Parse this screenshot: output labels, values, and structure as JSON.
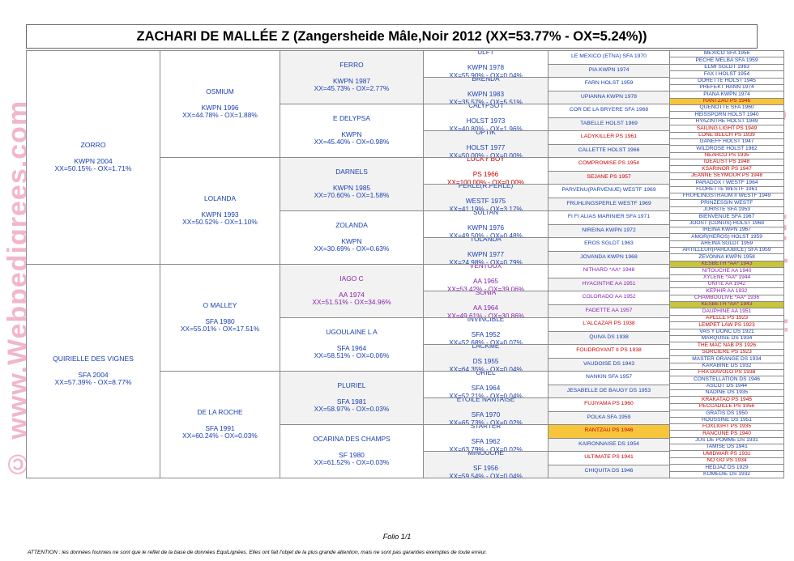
{
  "watermark": "© www.Webpedigrees.com",
  "title": "ZACHARI DE MALLÉE Z (Zangersheide Mâle,Noir  2012 (XX=53.77% - OX=5.24%))",
  "pedigree": {
    "g1": [
      {
        "lines": [
          "ZORRO",
          "KWPN 2004",
          "XX=50.15% - OX=1.71%"
        ],
        "color": "blue",
        "bg": "white"
      },
      {
        "lines": [
          "QUIRIELLE DES VIGNES",
          "SFA 2004",
          "XX=57.39% - OX=8.77%"
        ],
        "color": "blue",
        "bg": "white"
      }
    ],
    "g2": [
      {
        "lines": [
          "OSMIUM",
          "KWPN 1996",
          "XX=44.78% - OX=1.88%"
        ],
        "color": "blue",
        "bg": "white"
      },
      {
        "lines": [
          "LOLANDA",
          "KWPN 1993",
          "XX=50.52% - OX=1.10%"
        ],
        "color": "blue",
        "bg": "white"
      },
      {
        "lines": [
          "O MALLEY",
          "SFA 1980",
          "XX=55.01% - OX=17.51%"
        ],
        "color": "blue",
        "bg": "white"
      },
      {
        "lines": [
          "DE LA ROCHE",
          "SFA 1991",
          "XX=60.24% - OX=0.03%"
        ],
        "color": "blue",
        "bg": "white"
      }
    ],
    "g3": [
      {
        "lines": [
          "FERRO",
          "KWPN 1987",
          "XX=45.73% - OX=2.77%"
        ],
        "color": "blue",
        "bg": "shade"
      },
      {
        "lines": [
          "E DELYPSA",
          "KWPN",
          "XX=45.40% - OX=0.98%"
        ],
        "color": "blue",
        "bg": "white"
      },
      {
        "lines": [
          "DARNELS",
          "KWPN 1985",
          "XX=70.60% - OX=1.58%"
        ],
        "color": "blue",
        "bg": "shade"
      },
      {
        "lines": [
          "ZOLANDA",
          "KWPN",
          "XX=30.69% - OX=0.63%"
        ],
        "color": "blue",
        "bg": "white"
      },
      {
        "lines": [
          "IAGO C",
          "AA 1974",
          "XX=51.51% - OX=34.96%"
        ],
        "color": "purple",
        "bg": "shade"
      },
      {
        "lines": [
          "UGOULAINE L A",
          "SFA 1964",
          "XX=58.51% - OX=0.06%"
        ],
        "color": "blue",
        "bg": "white"
      },
      {
        "lines": [
          "PLURIEL",
          "SFA 1981",
          "XX=58.97% - OX=0.03%"
        ],
        "color": "blue",
        "bg": "shade"
      },
      {
        "lines": [
          "OCARINA DES CHAMPS",
          "SF 1980",
          "XX=61.52% - OX=0.03%"
        ],
        "color": "blue",
        "bg": "white"
      }
    ],
    "g4": [
      {
        "lines": [
          "ULFT",
          "KWPN 1978",
          "XX=55.90% - OX=0.04%"
        ],
        "color": "blue",
        "bg": "white"
      },
      {
        "lines": [
          "BRENDA",
          "KWPN 1983",
          "XX=35.57% - OX=5.51%"
        ],
        "color": "blue",
        "bg": "shade"
      },
      {
        "lines": [
          "CALYPSO I",
          "HOLST 1973",
          "XX=40.80% - OX=1.96%"
        ],
        "color": "blue",
        "bg": "white"
      },
      {
        "lines": [
          "OPTIK",
          "HOLST 1977",
          "XX=50.00% - OX=0.00%"
        ],
        "color": "blue",
        "bg": "shade"
      },
      {
        "lines": [
          "LUCKY BOY",
          "PS 1966",
          "XX=100.00% - OX=0.00%"
        ],
        "color": "red",
        "bg": "white"
      },
      {
        "lines": [
          "PERLE(R.PERLE)",
          "WESTF 1975",
          "XX=41.19% - OX=3.17%"
        ],
        "color": "blue",
        "bg": "shade"
      },
      {
        "lines": [
          "SULTAN",
          "KWPN 1976",
          "XX=49.50% - OX=0.48%"
        ],
        "color": "blue",
        "bg": "white"
      },
      {
        "lines": [
          "TOLANDA",
          "KWPN 1977",
          "XX=24.98% - OX=0.79%"
        ],
        "color": "blue",
        "bg": "shade"
      },
      {
        "lines": [
          "VENTOUX",
          "AA 1965",
          "XX=53.42% - OX=39.06%"
        ],
        "color": "purple",
        "bg": "white"
      },
      {
        "lines": [
          "SONIA",
          "AA 1964",
          "XX=49.61% - OX=30.86%"
        ],
        "color": "purple",
        "bg": "shade"
      },
      {
        "lines": [
          "INVINCIBLE",
          "SFA 1952",
          "XX=52.68% - OX=0.07%"
        ],
        "color": "blue",
        "bg": "white"
      },
      {
        "lines": [
          "LACKME",
          "DS 1955",
          "XX=64.35% - OX=0.04%"
        ],
        "color": "blue",
        "bg": "shade"
      },
      {
        "lines": [
          "URIEL",
          "SFA 1964",
          "XX=52.21% - OX=0.04%"
        ],
        "color": "blue",
        "bg": "white"
      },
      {
        "lines": [
          "ETOILE NANTAISE",
          "SFA 1970",
          "XX=65.73% - OX=0.02%"
        ],
        "color": "blue",
        "bg": "shade"
      },
      {
        "lines": [
          "STARTER",
          "SFA 1962",
          "XX=63.79% - OX=0.02%"
        ],
        "color": "blue",
        "bg": "white"
      },
      {
        "lines": [
          "MINOUCHE",
          "SF 1956",
          "XX=59.54% - OX=0.04%"
        ],
        "color": "blue",
        "bg": "shade"
      }
    ],
    "g5": [
      {
        "text": "LE MEXICO (ETNA) SFA 1970",
        "color": "blue",
        "bg": "white"
      },
      {
        "text": "PIA KWPN 1974",
        "color": "blue",
        "bg": "shade"
      },
      {
        "text": "FARN HOLST 1959",
        "color": "blue",
        "bg": "white"
      },
      {
        "text": "UPIANNA KWPN 1978",
        "color": "blue",
        "bg": "shade"
      },
      {
        "text": "COR DE LA BRYERE SFA 1968",
        "color": "blue",
        "bg": "white"
      },
      {
        "text": "TABELLE HOLST 1969",
        "color": "blue",
        "bg": "shade"
      },
      {
        "text": "LADYKILLER PS 1961",
        "color": "red",
        "bg": "white"
      },
      {
        "text": "CALLETTE HOLST 1966",
        "color": "blue",
        "bg": "shade"
      },
      {
        "text": "COMPROMISE PS 1954",
        "color": "red",
        "bg": "white"
      },
      {
        "text": "SEJANE PS 1957",
        "color": "red",
        "bg": "shade"
      },
      {
        "text": "PARVENU(PARVENUE) WESTF 1969",
        "color": "blue",
        "bg": "white"
      },
      {
        "text": "FRUHLINGSPERLE WESTF 1969",
        "color": "blue",
        "bg": "shade"
      },
      {
        "text": "FI FI  ALIAS MARINIER SFA 1971",
        "color": "blue",
        "bg": "white"
      },
      {
        "text": "NIREINA KWPN 1972",
        "color": "blue",
        "bg": "shade"
      },
      {
        "text": "EROS SGLDT 1963",
        "color": "blue",
        "bg": "white"
      },
      {
        "text": "JOVANDA KWPN 1968",
        "color": "blue",
        "bg": "shade"
      },
      {
        "text": "NITHARD *AA* 1948",
        "color": "purple",
        "bg": "white"
      },
      {
        "text": "HYACINTHE AA 1951",
        "color": "purple",
        "bg": "shade"
      },
      {
        "text": "COLORADO AA 1952",
        "color": "purple",
        "bg": "white"
      },
      {
        "text": "FADETTE AA 1957",
        "color": "purple",
        "bg": "shade"
      },
      {
        "text": "L'ALCAZAR PS 1938",
        "color": "red",
        "bg": "white"
      },
      {
        "text": "QUIVA DS 1938",
        "color": "blue",
        "bg": "shade"
      },
      {
        "text": "FOUDROYANT II PS 1938",
        "color": "red",
        "bg": "white"
      },
      {
        "text": "VAUDOISE DS 1943",
        "color": "blue",
        "bg": "shade"
      },
      {
        "text": "NANKIN SFA 1957",
        "color": "blue",
        "bg": "white"
      },
      {
        "text": "JESABELLE DE BAUGY DS 1953",
        "color": "blue",
        "bg": "shade"
      },
      {
        "text": "FUJIYAMA PS 1960",
        "color": "red",
        "bg": "white"
      },
      {
        "text": "POLKA SFA 1959",
        "color": "blue",
        "bg": "shade"
      },
      {
        "text": "RANTZAU PS 1946",
        "color": "red",
        "bg": "hl-orange"
      },
      {
        "text": "KAIRONNAISE DS 1954",
        "color": "blue",
        "bg": "shade"
      },
      {
        "text": "ULTIMATE PS 1941",
        "color": "red",
        "bg": "white"
      },
      {
        "text": "CHIQUITA DS 1946",
        "color": "blue",
        "bg": "shade"
      }
    ],
    "g6": [
      {
        "text": "MEXICO SFA 1956",
        "color": "blue",
        "bg": "white"
      },
      {
        "text": "PECHE MELBA SFA 1959",
        "color": "blue",
        "bg": "white"
      },
      {
        "text": "ELMI SGLDT 1963",
        "color": "blue",
        "bg": "white"
      },
      {
        "text": "FAX I HOLST 1954",
        "color": "blue",
        "bg": "white"
      },
      {
        "text": "DORETTE HOLST 1945",
        "color": "blue",
        "bg": "white"
      },
      {
        "text": "PREFEKT HANN 1974",
        "color": "blue",
        "bg": "white"
      },
      {
        "text": "PIANA KWPN 1974",
        "color": "blue",
        "bg": "white"
      },
      {
        "text": "RANTZAU PS 1946",
        "color": "red",
        "bg": "hl-orange"
      },
      {
        "text": "QUENOTTE SFA 1960",
        "color": "blue",
        "bg": "white"
      },
      {
        "text": "HEISSPORN HOLST 1940",
        "color": "blue",
        "bg": "white"
      },
      {
        "text": "HYAZINTHE HOLST 1949",
        "color": "blue",
        "bg": "white"
      },
      {
        "text": "SAILING LIGHT PS 1949",
        "color": "red",
        "bg": "white"
      },
      {
        "text": "LONE BEECH PS 1939",
        "color": "red",
        "bg": "white"
      },
      {
        "text": "GANEFF HOLST 1947",
        "color": "blue",
        "bg": "white"
      },
      {
        "text": "WILDROSE HOLST 1962",
        "color": "blue",
        "bg": "white"
      },
      {
        "text": "NEARCO PS 1935",
        "color": "red",
        "bg": "white"
      },
      {
        "text": "IDEALIST PS 1948",
        "color": "red",
        "bg": "white"
      },
      {
        "text": "KSARINOR PS 1947",
        "color": "red",
        "bg": "white"
      },
      {
        "text": "JEANNE SEYMOUR PS 1948",
        "color": "red",
        "bg": "white"
      },
      {
        "text": "PARADOX I WESTF 1964",
        "color": "blue",
        "bg": "white"
      },
      {
        "text": "FLORETTE WESTF 1961",
        "color": "blue",
        "bg": "white"
      },
      {
        "text": "FRUHLINGSTRAUM II WESTF 1949",
        "color": "blue",
        "bg": "white"
      },
      {
        "text": "PRINZESSIN WESTF",
        "color": "blue",
        "bg": "white"
      },
      {
        "text": "JURISTE SFA 1953",
        "color": "blue",
        "bg": "white"
      },
      {
        "text": "BIENVENUE SFA 1967",
        "color": "blue",
        "bg": "white"
      },
      {
        "text": "JOOST (CONUS) HOLST 1968",
        "color": "blue",
        "bg": "white"
      },
      {
        "text": "IREINA KWPN 1967",
        "color": "blue",
        "bg": "white"
      },
      {
        "text": "AMOR(HEROS) HOLST 1959",
        "color": "blue",
        "bg": "white"
      },
      {
        "text": "AREINA SGLDT 1959",
        "color": "blue",
        "bg": "white"
      },
      {
        "text": "ARTILLEUR(PARDUBICE) SFA 1959",
        "color": "blue",
        "bg": "white"
      },
      {
        "text": "ZEVONNA KWPN 1958",
        "color": "blue",
        "bg": "white"
      },
      {
        "text": "KESBETH *AA* 1943",
        "color": "purple",
        "bg": "hl-olive"
      },
      {
        "text": "NITOUCHE AA 1940",
        "color": "purple",
        "bg": "white"
      },
      {
        "text": "XYLENE *AA* 1944",
        "color": "purple",
        "bg": "white"
      },
      {
        "text": "UNITE AA 1942",
        "color": "purple",
        "bg": "white"
      },
      {
        "text": "KEPHIR AA 1932",
        "color": "purple",
        "bg": "white"
      },
      {
        "text": "CHAMBOULIVE *AA* 1936",
        "color": "purple",
        "bg": "white"
      },
      {
        "text": "KESBETH *AA* 1943",
        "color": "purple",
        "bg": "hl-olive"
      },
      {
        "text": "DAUPHINE AA 1951",
        "color": "purple",
        "bg": "white"
      },
      {
        "text": "APELLE PS 1923",
        "color": "red",
        "bg": "white"
      },
      {
        "text": "LEMPET LAW PS 1923",
        "color": "red",
        "bg": "white"
      },
      {
        "text": "VAS Y DONC DS 1921",
        "color": "blue",
        "bg": "white"
      },
      {
        "text": "MARQUISE DS 1934",
        "color": "blue",
        "bg": "white"
      },
      {
        "text": "THE MAC NAB PS 1926",
        "color": "red",
        "bg": "white"
      },
      {
        "text": "SORCIERE PS 1923",
        "color": "red",
        "bg": "white"
      },
      {
        "text": "MASTER ORANGE DS 1934",
        "color": "blue",
        "bg": "white"
      },
      {
        "text": "KARABINE DS 1932",
        "color": "blue",
        "bg": "white"
      },
      {
        "text": "FRA DIAVOLO PS 1938",
        "color": "red",
        "bg": "white"
      },
      {
        "text": "CONSTELLATION DS 1946",
        "color": "blue",
        "bg": "white"
      },
      {
        "text": "ASCOT DS 1944",
        "color": "blue",
        "bg": "white"
      },
      {
        "text": "NADINE DS 1935",
        "color": "blue",
        "bg": "white"
      },
      {
        "text": "KRAKATAO PS 1945",
        "color": "red",
        "bg": "white"
      },
      {
        "text": "PECCADILLE PS 1956",
        "color": "red",
        "bg": "white"
      },
      {
        "text": "GRATIS DS 1950",
        "color": "blue",
        "bg": "white"
      },
      {
        "text": "HOUSSINE DS 1951",
        "color": "blue",
        "bg": "white"
      },
      {
        "text": "FOXLIGHT PS 1935",
        "color": "red",
        "bg": "white"
      },
      {
        "text": "RANCUNE PS 1940",
        "color": "red",
        "bg": "white"
      },
      {
        "text": "JUS DE POMME DS 1931",
        "color": "blue",
        "bg": "white"
      },
      {
        "text": "TAMISE DS 1941",
        "color": "blue",
        "bg": "white"
      },
      {
        "text": "UMIDWAR PS 1931",
        "color": "red",
        "bg": "white"
      },
      {
        "text": "NO GO PS 1934",
        "color": "red",
        "bg": "white"
      },
      {
        "text": "HEDJAZ DS 1929",
        "color": "blue",
        "bg": "white"
      },
      {
        "text": "KOMEDIE DS 1932",
        "color": "blue",
        "bg": "white"
      }
    ]
  },
  "footer": {
    "folio": "Folio 1/1",
    "attention": "ATTENTION : les données fournies ne sont que le reflet de la base de données EquiLignées. Elles ont fait l'objet de la plus grande attention, mais ne sont pas garanties exemptes de toute erreur."
  }
}
